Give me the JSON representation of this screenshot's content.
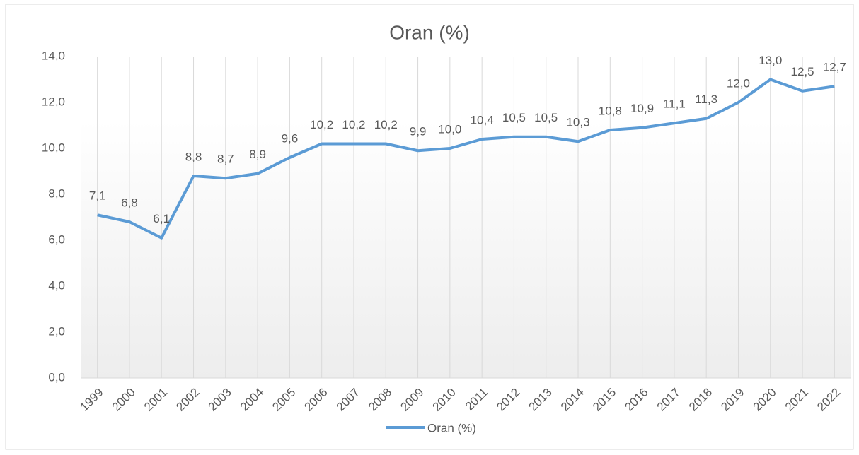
{
  "chart_data": {
    "type": "line",
    "title": "Oran (%)",
    "categories": [
      "1999",
      "2000",
      "2001",
      "2002",
      "2003",
      "2004",
      "2005",
      "2006",
      "2007",
      "2008",
      "2009",
      "2010",
      "2011",
      "2012",
      "2013",
      "2014",
      "2015",
      "2016",
      "2017",
      "2018",
      "2019",
      "2020",
      "2021",
      "2022"
    ],
    "series": [
      {
        "name": "Oran (%)",
        "color": "#5b9bd5",
        "values": [
          7.1,
          6.8,
          6.1,
          8.8,
          8.7,
          8.9,
          9.6,
          10.2,
          10.2,
          10.2,
          9.9,
          10.0,
          10.4,
          10.5,
          10.5,
          10.3,
          10.8,
          10.9,
          11.1,
          11.3,
          12.0,
          13.0,
          12.5,
          12.7
        ],
        "value_labels": [
          "7,1",
          "6,8",
          "6,1",
          "8,8",
          "8,7",
          "8,9",
          "9,6",
          "10,2",
          "10,2",
          "10,2",
          "9,9",
          "10,0",
          "10,4",
          "10,5",
          "10,5",
          "10,3",
          "10,8",
          "10,9",
          "11,1",
          "11,3",
          "12,0",
          "13,0",
          "12,5",
          "12,7"
        ]
      }
    ],
    "ylim": [
      0,
      14
    ],
    "yticks": [
      {
        "value": 0,
        "label": "0,0"
      },
      {
        "value": 2,
        "label": "2,0"
      },
      {
        "value": 4,
        "label": "4,0"
      },
      {
        "value": 6,
        "label": "6,0"
      },
      {
        "value": 8,
        "label": "8,0"
      },
      {
        "value": 10,
        "label": "10,0"
      },
      {
        "value": 12,
        "label": "12,0"
      },
      {
        "value": 14,
        "label": "14,0"
      }
    ],
    "grid": "vertical",
    "legend": "bottom"
  }
}
